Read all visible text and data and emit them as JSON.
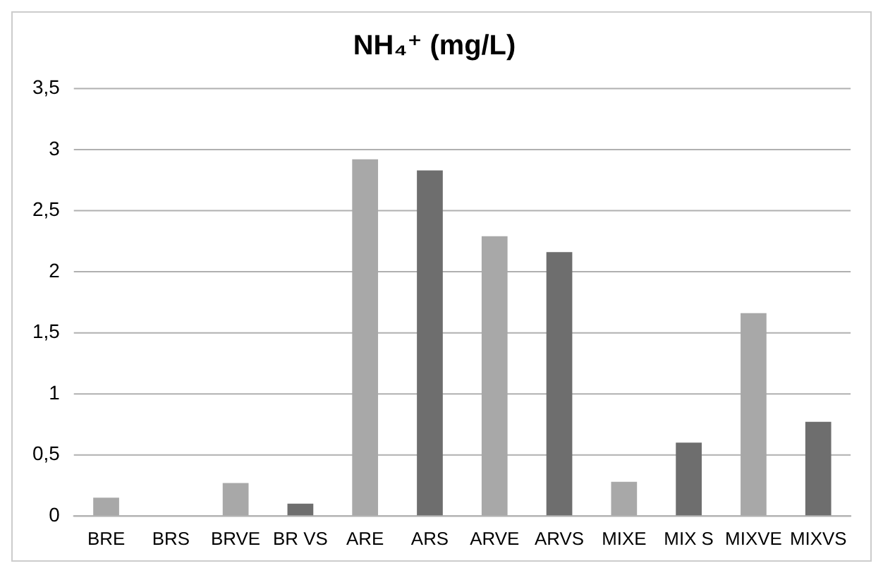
{
  "chart_data": {
    "type": "bar",
    "title": "NH₄⁺ (mg/L)",
    "categories": [
      "BRE",
      "BRS",
      "BRVE",
      "BR VS",
      "ARE",
      "ARS",
      "ARVE",
      "ARVS",
      "MIXE",
      "MIX S",
      "MIXVE",
      "MIXVS"
    ],
    "values": [
      0.15,
      0,
      0.27,
      0.1,
      2.92,
      2.83,
      2.29,
      2.16,
      0.28,
      0.6,
      1.66,
      0.77
    ],
    "colors": [
      "#a8a8a8",
      "#6e6e6e",
      "#a8a8a8",
      "#6e6e6e",
      "#a8a8a8",
      "#6e6e6e",
      "#a8a8a8",
      "#6e6e6e",
      "#a8a8a8",
      "#6e6e6e",
      "#a8a8a8",
      "#6e6e6e"
    ],
    "ylim": [
      0,
      3.5
    ],
    "yticks": [
      0,
      {
        "value": 0.5,
        "label": "0,5"
      },
      1,
      {
        "value": 1.5,
        "label": "1,5"
      },
      2,
      {
        "value": 2.5,
        "label": "2,5"
      },
      3,
      {
        "value": 3.5,
        "label": "3,5"
      }
    ],
    "grid": "y",
    "legend": false
  }
}
